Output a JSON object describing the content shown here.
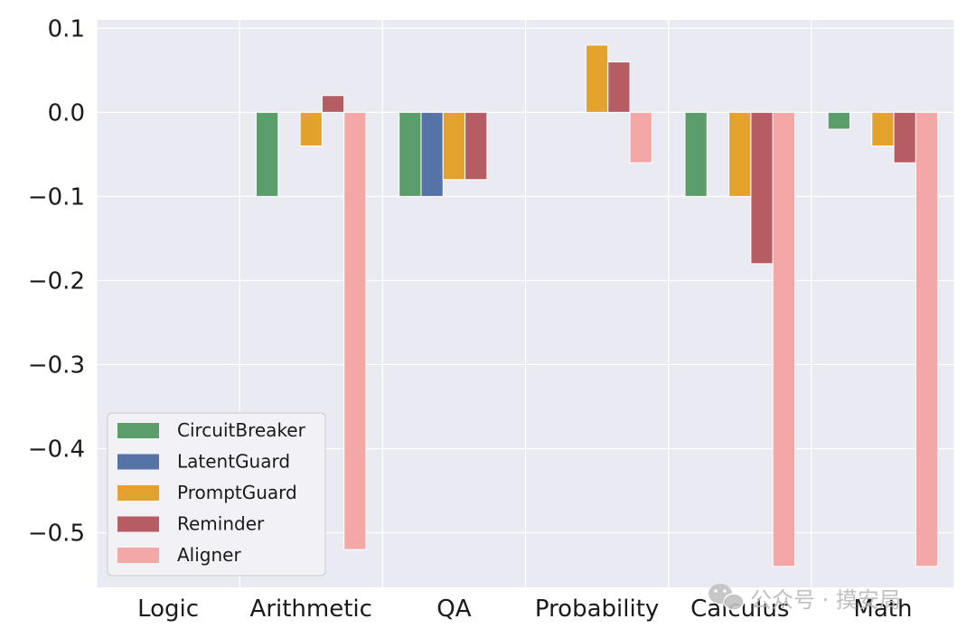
{
  "chart_data": {
    "type": "bar",
    "categories": [
      "Logic",
      "Arithmetic",
      "QA",
      "Probability",
      "Calculus",
      "Math"
    ],
    "series": [
      {
        "name": "CircuitBreaker",
        "color": "#5b9e6b",
        "values": [
          0.0,
          -0.1,
          -0.1,
          0.0,
          -0.1,
          -0.02
        ]
      },
      {
        "name": "LatentGuard",
        "color": "#5673a8",
        "values": [
          0.0,
          0.0,
          -0.1,
          0.0,
          0.0,
          0.0
        ]
      },
      {
        "name": "PromptGuard",
        "color": "#e3a22b",
        "values": [
          0.0,
          -0.04,
          -0.08,
          0.08,
          -0.1,
          -0.04
        ]
      },
      {
        "name": "Reminder",
        "color": "#b65c63",
        "values": [
          0.0,
          0.02,
          -0.08,
          0.06,
          -0.18,
          -0.06
        ]
      },
      {
        "name": "Aligner",
        "color": "#f4a7a7",
        "values": [
          0.0,
          -0.52,
          0.0,
          -0.06,
          -0.54,
          -0.54
        ]
      }
    ],
    "yticks": [
      0.1,
      0.0,
      -0.1,
      -0.2,
      -0.3,
      -0.4,
      -0.5
    ],
    "ytick_labels": [
      "0.1",
      "0.0",
      "−0.1",
      "−0.2",
      "−0.3",
      "−0.4",
      "−0.5"
    ],
    "ylim": [
      -0.565,
      0.11
    ],
    "title": "",
    "xlabel": "",
    "ylabel": "",
    "grid": true,
    "legend": "lower-left",
    "background_color": "#eaeaf2"
  },
  "watermark": {
    "text": "公众号 · 摸安局",
    "icon": "wechat-icon"
  }
}
